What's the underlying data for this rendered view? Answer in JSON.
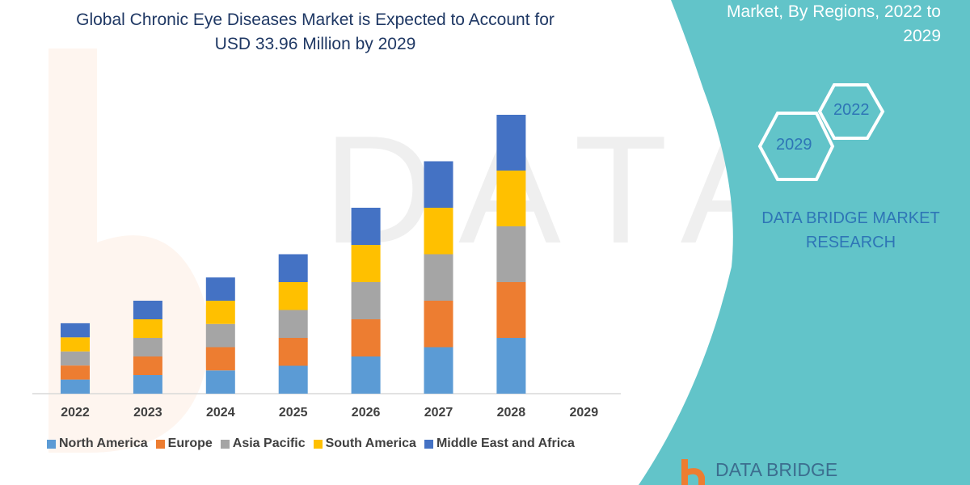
{
  "title": "Global Chronic Eye Diseases Market is Expected to Account for USD 33.96 Million by 2029",
  "title_line1": "Global Chronic Eye Diseases Market is Expected to Account for",
  "title_line2": "USD 33.96 Million by 2029",
  "side_panel": {
    "heading_line1": "Market, By Regions, 2022 to",
    "heading_line2": "2029",
    "hex_start": "2022",
    "hex_end": "2029",
    "brand_line1": "DATA BRIDGE MARKET",
    "brand_line2": "RESEARCH",
    "logo_text": "DATA BRIDGE",
    "panel_color": "#62c4c9"
  },
  "chart_data": {
    "type": "bar",
    "stacked": true,
    "categories": [
      "2022",
      "2023",
      "2024",
      "2025",
      "2026",
      "2027",
      "2028",
      "2029"
    ],
    "series": [
      {
        "name": "North America",
        "color": "#5b9bd5",
        "values": [
          1.0,
          1.32,
          1.65,
          1.98,
          2.64,
          3.3,
          3.96,
          null
        ]
      },
      {
        "name": "Europe",
        "color": "#ed7d31",
        "values": [
          1.0,
          1.32,
          1.65,
          1.98,
          2.64,
          3.3,
          3.96,
          null
        ]
      },
      {
        "name": "Asia Pacific",
        "color": "#a5a5a5",
        "values": [
          1.0,
          1.32,
          1.65,
          1.98,
          2.64,
          3.3,
          3.96,
          null
        ]
      },
      {
        "name": "South America",
        "color": "#ffc000",
        "values": [
          1.0,
          1.32,
          1.65,
          1.98,
          2.64,
          3.3,
          3.96,
          null
        ]
      },
      {
        "name": "Middle East and Africa",
        "color": "#4472c4",
        "values": [
          1.0,
          1.32,
          1.65,
          1.98,
          2.64,
          3.3,
          3.96,
          null
        ]
      }
    ],
    "xlabel": "",
    "ylabel": "",
    "y_axis_shown": false,
    "grid": false,
    "legend": "bottom"
  }
}
